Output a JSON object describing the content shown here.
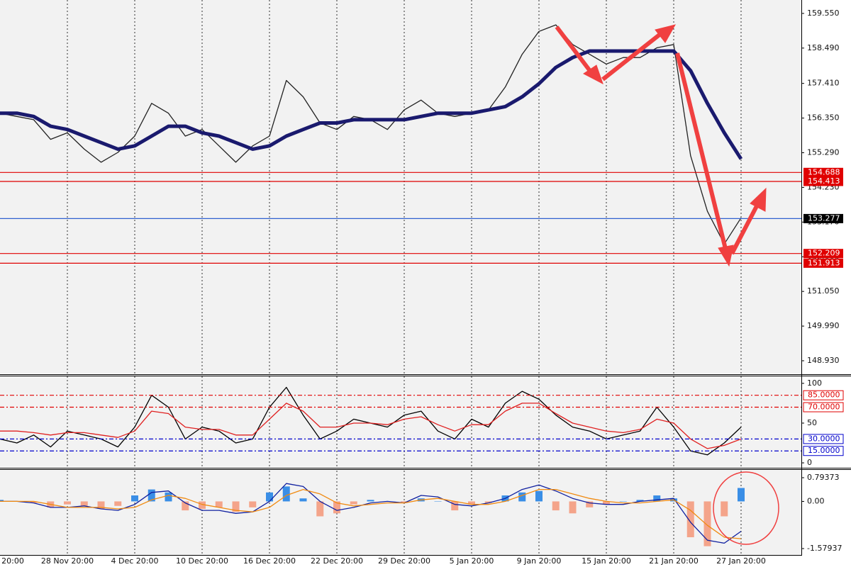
{
  "chart_data": [
    {
      "type": "line",
      "categories": [
        "20:00",
        null,
        null,
        null,
        "28 Nov 20:00",
        null,
        null,
        null,
        "4 Dec 20:00",
        null,
        null,
        null,
        "10 Dec 20:00",
        null,
        null,
        null,
        "16 Dec 20:00",
        null,
        null,
        null,
        "22 Dec 20:00",
        null,
        null,
        null,
        "29 Dec 20:00",
        null,
        null,
        null,
        "5 Jan 20:00",
        null,
        null,
        null,
        "9 Jan 20:00",
        null,
        null,
        null,
        "15 Jan 20:00",
        null,
        null,
        null,
        "21 Jan 20:00",
        null,
        null,
        null,
        "27 Jan 20:00"
      ],
      "series": [
        {
          "color": "#222222",
          "values": [
            156.5,
            156.4,
            156.3,
            155.7,
            155.9,
            155.4,
            155.0,
            155.3,
            155.8,
            156.8,
            156.5,
            155.8,
            156.0,
            155.5,
            155.0,
            155.5,
            155.8,
            157.5,
            157.0,
            156.2,
            156.0,
            156.4,
            156.3,
            156.0,
            156.6,
            156.9,
            156.5,
            156.4,
            156.5,
            156.6,
            157.3,
            158.3,
            159.0,
            159.2,
            158.6,
            158.3,
            158.0,
            158.2,
            158.2,
            158.5,
            158.6,
            155.2,
            153.5,
            152.5,
            153.3
          ]
        },
        {
          "color": "#1a1a6e",
          "values": [
            156.5,
            156.5,
            156.4,
            156.1,
            156.0,
            155.8,
            155.6,
            155.4,
            155.5,
            155.8,
            156.1,
            156.1,
            155.9,
            155.8,
            155.6,
            155.4,
            155.5,
            155.8,
            156.0,
            156.2,
            156.2,
            156.3,
            156.3,
            156.3,
            156.3,
            156.4,
            156.5,
            156.5,
            156.5,
            156.6,
            156.7,
            157.0,
            157.4,
            157.9,
            158.2,
            158.4,
            158.4,
            158.4,
            158.4,
            158.4,
            158.4,
            157.8,
            156.8,
            155.9,
            155.1
          ]
        }
      ],
      "ylim": [
        148.54,
        159.96
      ],
      "yticks": [
        {
          "value": 159.55,
          "label": "159.550"
        },
        {
          "value": 158.49,
          "label": "158.490"
        },
        {
          "value": 157.41,
          "label": "157.410"
        },
        {
          "value": 156.35,
          "label": "156.350"
        },
        {
          "value": 155.29,
          "label": "155.290"
        },
        {
          "value": 154.23,
          "label": "154.230"
        },
        {
          "value": 153.17,
          "label": "153.170"
        },
        {
          "value": 152.11,
          "label": "152.110"
        },
        {
          "value": 151.05,
          "label": "151.050"
        },
        {
          "value": 149.99,
          "label": "149.990"
        },
        {
          "value": 148.93,
          "label": "148.930"
        }
      ],
      "levels": [
        {
          "value": 154.688,
          "label": "154.688",
          "color": "#e00000"
        },
        {
          "value": 154.413,
          "label": "154.413",
          "color": "#e00000"
        },
        {
          "value": 153.277,
          "label": "153.277",
          "color": "#3060d0"
        },
        {
          "value": 152.209,
          "label": "152.209",
          "color": "#e00000"
        },
        {
          "value": 151.913,
          "label": "151.913",
          "color": "#e00000"
        }
      ],
      "grid": true
    },
    {
      "type": "line",
      "series": [
        {
          "color": "#000000",
          "values": [
            30,
            25,
            35,
            20,
            40,
            35,
            30,
            20,
            45,
            85,
            70,
            30,
            45,
            40,
            25,
            30,
            70,
            95,
            60,
            30,
            40,
            55,
            50,
            45,
            60,
            65,
            40,
            30,
            55,
            45,
            75,
            90,
            80,
            60,
            45,
            40,
            30,
            35,
            40,
            70,
            45,
            15,
            10,
            25,
            45
          ]
        },
        {
          "color": "#e02020",
          "values": [
            40,
            40,
            38,
            35,
            38,
            38,
            35,
            32,
            40,
            65,
            62,
            45,
            42,
            42,
            35,
            35,
            55,
            75,
            65,
            45,
            45,
            50,
            50,
            48,
            55,
            58,
            48,
            40,
            48,
            48,
            65,
            75,
            75,
            62,
            50,
            45,
            40,
            38,
            42,
            55,
            50,
            30,
            18,
            22,
            30
          ]
        }
      ],
      "ylim": [
        -5.3,
        108.8
      ],
      "yticks": [
        100,
        50,
        0
      ],
      "levels": [
        {
          "value": 85,
          "label": "85.0000",
          "color": "#e00000"
        },
        {
          "value": 70,
          "label": "70.0000",
          "color": "#e00000"
        },
        {
          "value": 30,
          "label": "30.0000",
          "color": "#0000cc"
        },
        {
          "value": 15,
          "label": "15.0000",
          "color": "#0000cc"
        }
      ],
      "grid": true
    },
    {
      "type": "bar",
      "values": [
        0.05,
        0.0,
        -0.05,
        -0.2,
        -0.1,
        -0.15,
        -0.25,
        -0.15,
        0.2,
        0.4,
        0.3,
        -0.3,
        -0.25,
        -0.2,
        -0.35,
        -0.2,
        0.3,
        0.5,
        0.1,
        -0.5,
        -0.4,
        -0.1,
        0.05,
        0.0,
        -0.05,
        0.1,
        0.0,
        -0.3,
        -0.1,
        -0.05,
        0.2,
        0.3,
        0.35,
        -0.3,
        -0.4,
        -0.2,
        -0.1,
        0.0,
        0.05,
        0.2,
        0.1,
        -1.2,
        -1.5,
        -0.5,
        0.45
      ],
      "positive_color": "#3a8ee6",
      "negative_color": "#f4a48a",
      "series": [
        {
          "color": "#1020a0",
          "values": [
            0,
            0,
            -0.05,
            -0.2,
            -0.2,
            -0.15,
            -0.25,
            -0.3,
            -0.1,
            0.3,
            0.35,
            -0.05,
            -0.3,
            -0.3,
            -0.4,
            -0.35,
            0.0,
            0.6,
            0.5,
            0.0,
            -0.3,
            -0.2,
            -0.05,
            0.0,
            -0.05,
            0.2,
            0.15,
            -0.1,
            -0.15,
            -0.05,
            0.1,
            0.4,
            0.55,
            0.35,
            0.1,
            -0.05,
            -0.1,
            -0.1,
            0.0,
            0.05,
            0.1,
            -0.7,
            -1.3,
            -1.4,
            -1.0
          ]
        },
        {
          "color": "#f08a10",
          "values": [
            0,
            0,
            0,
            -0.1,
            -0.2,
            -0.2,
            -0.2,
            -0.25,
            -0.2,
            0.05,
            0.2,
            0.1,
            -0.1,
            -0.2,
            -0.3,
            -0.35,
            -0.2,
            0.2,
            0.4,
            0.25,
            -0.05,
            -0.15,
            -0.1,
            -0.05,
            -0.05,
            0.05,
            0.1,
            0.0,
            -0.1,
            -0.1,
            0.0,
            0.2,
            0.4,
            0.4,
            0.25,
            0.1,
            0.0,
            -0.05,
            -0.05,
            0.0,
            0.05,
            -0.3,
            -0.8,
            -1.2,
            -1.25
          ]
        }
      ],
      "ylim": [
        -1.793,
        1.031
      ],
      "yticks": [
        0.79373,
        {
          "value": 0,
          "label": "0.00"
        },
        -1.57937
      ],
      "grid": true
    }
  ]
}
